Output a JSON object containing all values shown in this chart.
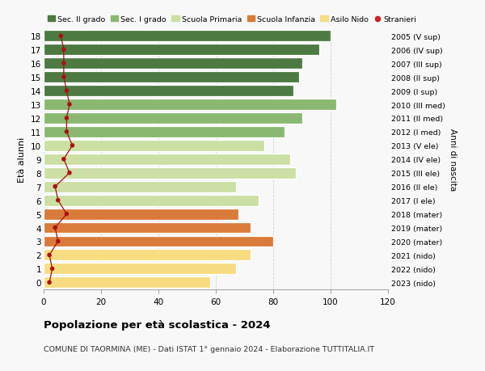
{
  "ages": [
    0,
    1,
    2,
    3,
    4,
    5,
    6,
    7,
    8,
    9,
    10,
    11,
    12,
    13,
    14,
    15,
    16,
    17,
    18
  ],
  "bar_values": [
    58,
    67,
    72,
    80,
    72,
    68,
    75,
    67,
    88,
    86,
    77,
    84,
    90,
    102,
    87,
    89,
    90,
    96,
    100
  ],
  "stranieri_values": [
    2,
    3,
    2,
    5,
    4,
    8,
    5,
    4,
    9,
    7,
    10,
    8,
    8,
    9,
    8,
    7,
    7,
    7,
    6
  ],
  "right_labels": [
    "2023 (nido)",
    "2022 (nido)",
    "2021 (nido)",
    "2020 (mater)",
    "2019 (mater)",
    "2018 (mater)",
    "2017 (I ele)",
    "2016 (II ele)",
    "2015 (III ele)",
    "2014 (IV ele)",
    "2013 (V ele)",
    "2012 (I med)",
    "2011 (II med)",
    "2010 (III med)",
    "2009 (I sup)",
    "2008 (II sup)",
    "2007 (III sup)",
    "2006 (IV sup)",
    "2005 (V sup)"
  ],
  "bar_colors": [
    "#f7dc82",
    "#f7dc82",
    "#f7dc82",
    "#d97b3a",
    "#d97b3a",
    "#d97b3a",
    "#ccdfa4",
    "#ccdfa4",
    "#ccdfa4",
    "#ccdfa4",
    "#ccdfa4",
    "#8ab870",
    "#8ab870",
    "#8ab870",
    "#4d7a42",
    "#4d7a42",
    "#4d7a42",
    "#4d7a42",
    "#4d7a42"
  ],
  "legend_labels": [
    "Sec. II grado",
    "Sec. I grado",
    "Scuola Primaria",
    "Scuola Infanzia",
    "Asilo Nido",
    "Stranieri"
  ],
  "legend_colors_list": [
    "#4d7a42",
    "#8ab870",
    "#ccdfa4",
    "#d97b3a",
    "#f7dc82",
    "#cc2222"
  ],
  "title": "Popolazione per età scolastica - 2024",
  "subtitle": "COMUNE DI TAORMINA (ME) - Dati ISTAT 1° gennaio 2024 - Elaborazione TUTTITALIA.IT",
  "ylabel": "Età alunni",
  "right_ylabel": "Anni di nascita",
  "xlim": [
    0,
    120
  ],
  "xticks": [
    0,
    20,
    40,
    60,
    80,
    100,
    120
  ],
  "bg_color": "#f8f8f8",
  "grid_color": "#d0d0d0",
  "stranieri_color": "#aa1111"
}
